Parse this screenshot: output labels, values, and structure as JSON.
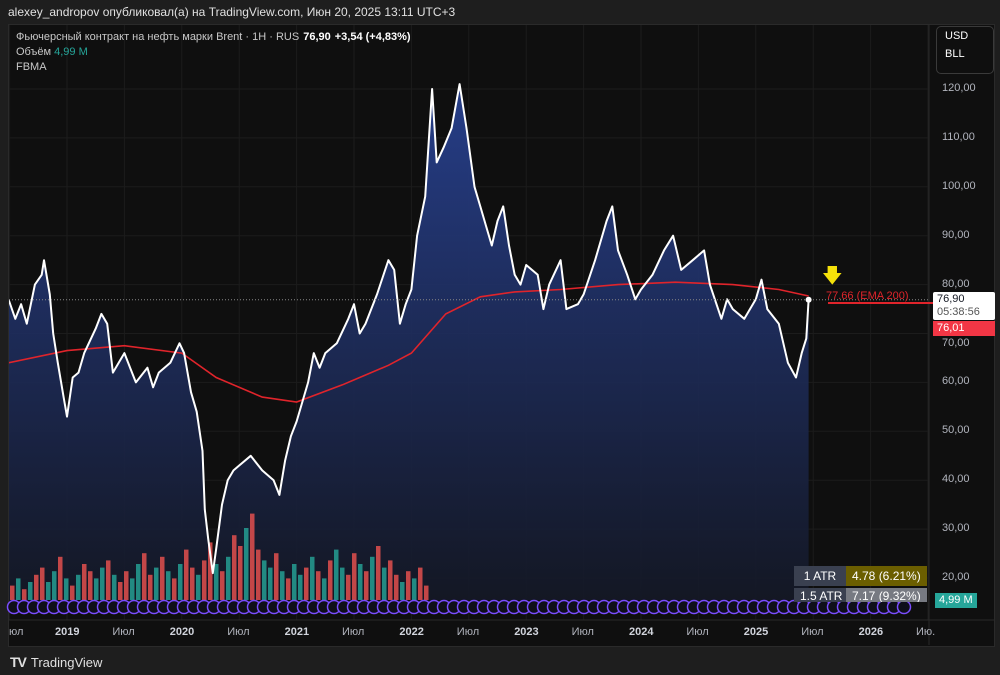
{
  "header": {
    "publisher_line": "alexey_andropov опубликовал(а) на TradingView.com, Июн 20, 2025 13:11 UTC+3"
  },
  "legend": {
    "symbol": "Фьючерсный контракт на нефть марки Brent · 1H · RUS",
    "price": "76,90",
    "change": "+3,54 (+4,83%)",
    "volume_label": "Объём",
    "volume_value": "4,99 M",
    "indicator": "FBMA"
  },
  "units": {
    "currency": "USD",
    "unit": "BLL"
  },
  "price_axis": {
    "ticks": [
      "120,00",
      "110,00",
      "100,00",
      "90,00",
      "80,00",
      "70,00",
      "60,00",
      "50,00",
      "40,00",
      "30,00",
      "20,00"
    ],
    "tick_values": [
      120,
      110,
      100,
      90,
      80,
      70,
      60,
      50,
      40,
      30,
      20
    ]
  },
  "time_axis": {
    "labels": [
      "юл",
      "2019",
      "Июл",
      "2020",
      "Июл",
      "2021",
      "Июл",
      "2022",
      "Июл",
      "2023",
      "Июл",
      "2024",
      "Июл",
      "2025",
      "Июл",
      "2026",
      "Ию."
    ],
    "label_times": [
      2018.5,
      2019,
      2019.5,
      2020,
      2020.5,
      2021,
      2021.5,
      2022,
      2022.5,
      2023,
      2023.5,
      2024,
      2024.5,
      2025,
      2025.5,
      2026,
      2026.5
    ]
  },
  "tags": {
    "last_price": "76,90",
    "countdown": "05:38:56",
    "red_price": "76,01",
    "volume": "4,99 M",
    "ema_label": "77.66 (EMA 200)"
  },
  "atr": [
    {
      "label": "1 ATR",
      "value": "4.78 (6.21%)"
    },
    {
      "label": "1.5 ATR",
      "value": "7.17 (9.32%)"
    }
  ],
  "footer": {
    "brand": "TradingView"
  },
  "colors": {
    "price_line": "#ffffff",
    "ema": "#e0242b",
    "area_top": "#27408f",
    "up": "#26a69a",
    "down": "#ef5350",
    "circles": "#7b4dff",
    "arrow": "#f5e10a"
  },
  "chart_data": {
    "type": "line",
    "price": [
      [
        2018.49,
        77
      ],
      [
        2018.55,
        73
      ],
      [
        2018.6,
        76
      ],
      [
        2018.65,
        72
      ],
      [
        2018.72,
        80
      ],
      [
        2018.78,
        82
      ],
      [
        2018.8,
        85
      ],
      [
        2018.85,
        78
      ],
      [
        2018.88,
        70
      ],
      [
        2018.92,
        64
      ],
      [
        2018.97,
        57
      ],
      [
        2019.0,
        53
      ],
      [
        2019.05,
        61
      ],
      [
        2019.1,
        62
      ],
      [
        2019.15,
        66
      ],
      [
        2019.25,
        71
      ],
      [
        2019.3,
        74
      ],
      [
        2019.35,
        72
      ],
      [
        2019.4,
        62
      ],
      [
        2019.45,
        64
      ],
      [
        2019.5,
        66
      ],
      [
        2019.55,
        63
      ],
      [
        2019.6,
        60
      ],
      [
        2019.7,
        63
      ],
      [
        2019.75,
        59
      ],
      [
        2019.8,
        62
      ],
      [
        2019.9,
        64
      ],
      [
        2019.98,
        68
      ],
      [
        2020.02,
        66
      ],
      [
        2020.08,
        58
      ],
      [
        2020.13,
        54
      ],
      [
        2020.18,
        46
      ],
      [
        2020.2,
        34
      ],
      [
        2020.23,
        28
      ],
      [
        2020.27,
        21
      ],
      [
        2020.3,
        26
      ],
      [
        2020.35,
        35
      ],
      [
        2020.4,
        40
      ],
      [
        2020.45,
        42
      ],
      [
        2020.5,
        43
      ],
      [
        2020.6,
        45
      ],
      [
        2020.7,
        42
      ],
      [
        2020.8,
        40
      ],
      [
        2020.85,
        37
      ],
      [
        2020.9,
        44
      ],
      [
        2020.95,
        49
      ],
      [
        2021.0,
        52
      ],
      [
        2021.1,
        60
      ],
      [
        2021.15,
        66
      ],
      [
        2021.2,
        63
      ],
      [
        2021.25,
        66
      ],
      [
        2021.35,
        68
      ],
      [
        2021.45,
        73
      ],
      [
        2021.5,
        76
      ],
      [
        2021.55,
        70
      ],
      [
        2021.6,
        72
      ],
      [
        2021.7,
        78
      ],
      [
        2021.8,
        85
      ],
      [
        2021.85,
        83
      ],
      [
        2021.9,
        72
      ],
      [
        2021.95,
        76
      ],
      [
        2022.0,
        79
      ],
      [
        2022.05,
        90
      ],
      [
        2022.12,
        98
      ],
      [
        2022.18,
        120
      ],
      [
        2022.22,
        105
      ],
      [
        2022.28,
        108
      ],
      [
        2022.35,
        112
      ],
      [
        2022.42,
        121
      ],
      [
        2022.48,
        112
      ],
      [
        2022.55,
        100
      ],
      [
        2022.6,
        96
      ],
      [
        2022.65,
        92
      ],
      [
        2022.7,
        88
      ],
      [
        2022.75,
        93
      ],
      [
        2022.8,
        96
      ],
      [
        2022.85,
        88
      ],
      [
        2022.9,
        82
      ],
      [
        2022.95,
        80
      ],
      [
        2023.0,
        84
      ],
      [
        2023.1,
        82
      ],
      [
        2023.15,
        75
      ],
      [
        2023.2,
        80
      ],
      [
        2023.3,
        85
      ],
      [
        2023.35,
        75
      ],
      [
        2023.45,
        76
      ],
      [
        2023.5,
        78
      ],
      [
        2023.6,
        85
      ],
      [
        2023.7,
        93
      ],
      [
        2023.75,
        96
      ],
      [
        2023.8,
        87
      ],
      [
        2023.88,
        82
      ],
      [
        2023.95,
        77
      ],
      [
        2024.0,
        79
      ],
      [
        2024.1,
        82
      ],
      [
        2024.2,
        87
      ],
      [
        2024.28,
        90
      ],
      [
        2024.35,
        83
      ],
      [
        2024.45,
        85
      ],
      [
        2024.55,
        87
      ],
      [
        2024.6,
        80
      ],
      [
        2024.7,
        73
      ],
      [
        2024.75,
        77
      ],
      [
        2024.8,
        75
      ],
      [
        2024.9,
        73
      ],
      [
        2025.0,
        77
      ],
      [
        2025.05,
        81
      ],
      [
        2025.1,
        75
      ],
      [
        2025.2,
        72
      ],
      [
        2025.28,
        64
      ],
      [
        2025.35,
        61
      ],
      [
        2025.4,
        66
      ],
      [
        2025.44,
        69
      ],
      [
        2025.46,
        76.9
      ]
    ],
    "ema200": [
      [
        2018.49,
        64
      ],
      [
        2019.0,
        66.5
      ],
      [
        2019.5,
        67.5
      ],
      [
        2020.0,
        66
      ],
      [
        2020.3,
        61
      ],
      [
        2020.7,
        57
      ],
      [
        2021.0,
        56
      ],
      [
        2021.4,
        59.5
      ],
      [
        2021.8,
        63.5
      ],
      [
        2022.0,
        66
      ],
      [
        2022.3,
        74
      ],
      [
        2022.6,
        77.5
      ],
      [
        2022.9,
        78.5
      ],
      [
        2023.3,
        79
      ],
      [
        2023.8,
        80
      ],
      [
        2024.3,
        80.5
      ],
      [
        2024.8,
        80
      ],
      [
        2025.2,
        79
      ],
      [
        2025.46,
        77.66
      ]
    ],
    "volume": [
      4,
      6,
      3,
      5,
      7,
      9,
      5,
      8,
      12,
      6,
      4,
      7,
      10,
      8,
      6,
      9,
      11,
      7,
      5,
      8,
      6,
      10,
      13,
      7,
      9,
      12,
      8,
      6,
      10,
      14,
      9,
      7,
      11,
      16,
      10,
      8,
      12,
      18,
      15,
      20,
      24,
      14,
      11,
      9,
      13,
      8,
      6,
      10,
      7,
      9,
      12,
      8,
      6,
      11,
      14,
      9,
      7,
      13,
      10,
      8,
      12,
      15,
      9,
      11,
      7,
      5,
      8,
      6,
      9,
      4
    ],
    "volume_up": [
      0,
      1,
      0,
      1,
      0,
      0,
      1,
      1,
      0,
      1,
      0,
      1,
      0,
      0,
      1,
      1,
      0,
      1,
      0,
      0,
      1,
      1,
      0,
      0,
      1,
      0,
      1,
      0,
      1,
      0,
      0,
      1,
      0,
      0,
      1,
      0,
      1,
      0,
      0,
      1,
      0,
      0,
      1,
      1,
      0,
      1,
      0,
      1,
      1,
      0,
      1,
      0,
      1,
      0,
      1,
      1,
      0,
      0,
      1,
      0,
      1,
      0,
      1,
      0,
      0,
      1,
      0,
      1,
      0,
      0
    ],
    "ylim": [
      15,
      125
    ],
    "xlim": [
      2018.42,
      2026.55
    ]
  }
}
